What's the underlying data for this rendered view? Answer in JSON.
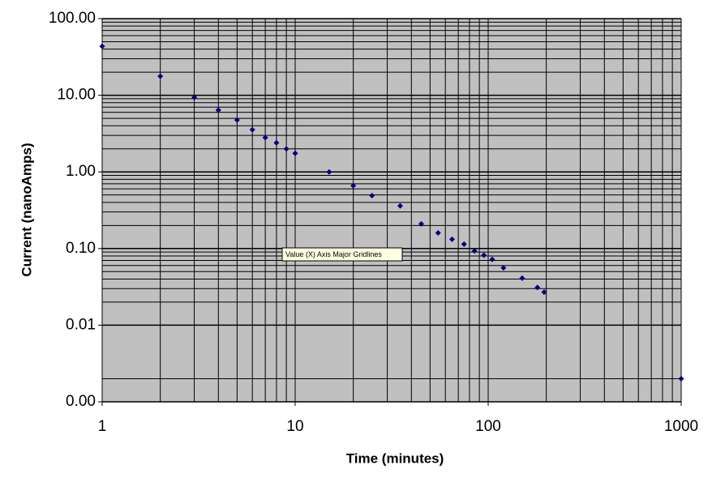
{
  "chart_data": {
    "type": "scatter",
    "x_label": "Time (minutes)",
    "y_label": "Current (nanoAmps)",
    "annotation": "Value (X) Axis Major Gridlines",
    "xlog": true,
    "ylog": true,
    "grid": true,
    "plot_color": "#c0c0c0",
    "xlim": [
      1,
      1000
    ],
    "ylim": [
      0.001,
      100
    ],
    "xticks": [
      1,
      10,
      100,
      1000
    ],
    "yticks": [
      {
        "value": 0.001,
        "label": "0.00"
      },
      {
        "value": 0.01,
        "label": "0.01"
      },
      {
        "value": 0.1,
        "label": "0.10"
      },
      {
        "value": 1,
        "label": "1.00"
      },
      {
        "value": 10,
        "label": "10.00"
      },
      {
        "value": 100,
        "label": "100.00"
      }
    ],
    "xgrid": [
      2,
      3,
      4,
      5,
      6,
      7,
      8,
      9,
      20,
      30,
      40,
      50,
      60,
      70,
      80,
      90,
      200,
      300,
      400,
      500,
      600,
      700,
      800,
      900
    ],
    "ygrid": [
      0.002,
      0.02,
      0.03,
      0.04,
      0.05,
      0.06,
      0.07,
      0.08,
      0.09,
      0.2,
      0.3,
      0.4,
      0.5,
      0.6,
      0.7,
      0.8,
      0.9,
      2,
      3,
      4,
      5,
      6,
      7,
      8,
      9,
      20,
      30,
      40,
      50,
      60,
      70,
      80,
      90
    ],
    "series": [
      {
        "color": "#000080",
        "x": [
          1,
          2,
          3,
          4,
          5,
          6,
          7,
          8,
          9,
          10,
          15,
          20,
          25,
          35,
          45,
          55,
          65,
          75,
          85,
          95,
          105,
          120,
          150,
          180,
          195,
          1000
        ],
        "values": [
          43.6,
          17.7,
          9.4,
          6.4,
          4.75,
          3.55,
          2.8,
          2.4,
          2.0,
          1.75,
          1.0,
          0.66,
          0.49,
          0.36,
          0.21,
          0.16,
          0.132,
          0.114,
          0.093,
          0.082,
          0.072,
          0.056,
          0.041,
          0.031,
          0.027,
          0.002
        ]
      }
    ]
  }
}
